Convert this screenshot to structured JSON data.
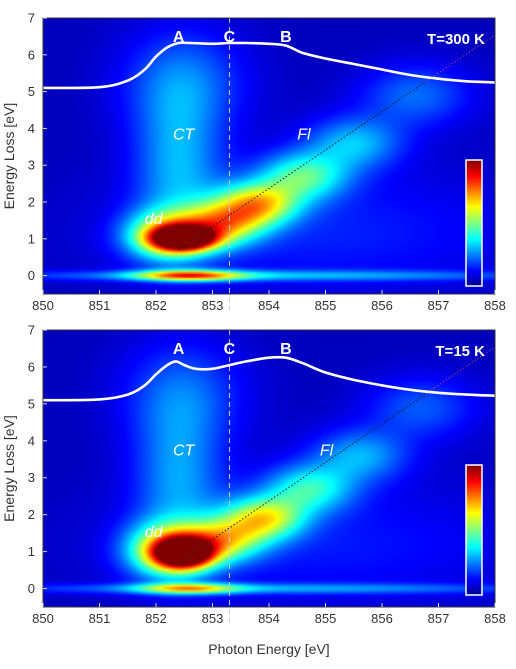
{
  "chart_data": [
    {
      "type": "heatmap",
      "panel": "top",
      "temperature_label": "T=300 K",
      "xlim": [
        850,
        858
      ],
      "ylim": [
        -0.5,
        7
      ],
      "x_ticks": [
        850,
        851,
        852,
        853,
        854,
        855,
        856,
        857,
        858
      ],
      "y_ticks": [
        0,
        1,
        2,
        3,
        4,
        5,
        6,
        7
      ],
      "ylabel": "Energy Loss [eV]",
      "xlabel": "",
      "grid": false,
      "colorbar": {
        "min_color": "#00008f",
        "max_color": "#800000",
        "placement": "right",
        "tick_labels": false
      },
      "xas_curve": {
        "x": [
          850,
          851,
          851.5,
          851.8,
          852.0,
          852.2,
          852.4,
          852.6,
          853.0,
          853.3,
          853.6,
          854.0,
          854.3,
          854.6,
          855.0,
          855.5,
          856.0,
          856.5,
          857.0,
          857.5,
          858
        ],
        "y": [
          5.1,
          5.12,
          5.3,
          5.6,
          5.95,
          6.2,
          6.32,
          6.32,
          6.3,
          6.32,
          6.32,
          6.3,
          6.25,
          6.05,
          5.9,
          5.75,
          5.6,
          5.45,
          5.35,
          5.28,
          5.25
        ]
      },
      "peak_labels": [
        {
          "text": "A",
          "x": 852.4
        },
        {
          "text": "C",
          "x": 853.3
        },
        {
          "text": "B",
          "x": 854.3
        }
      ],
      "vertical_marker_x": 853.3,
      "fluorescence_line": {
        "x": [
          852.4,
          858
        ],
        "y": [
          0.7,
          6.55
        ]
      },
      "features": [
        {
          "text": "CT",
          "x": 852.3,
          "y": 3.7
        },
        {
          "text": "Fl",
          "x": 854.5,
          "y": 3.7
        },
        {
          "text": "dd",
          "x": 851.8,
          "y": 1.4
        }
      ],
      "intensity_blobs": [
        {
          "x": 852.5,
          "y": 1.0,
          "sx": 0.38,
          "sy": 0.22,
          "level": 1.0
        },
        {
          "x": 852.2,
          "y": 1.1,
          "sx": 0.5,
          "sy": 0.45,
          "level": 0.55
        },
        {
          "x": 852.6,
          "y": 0.0,
          "sx": 0.65,
          "sy": 0.1,
          "level": 0.6
        },
        {
          "x": 854.0,
          "y": 0.0,
          "sx": 3.5,
          "sy": 0.1,
          "level": 0.22
        },
        {
          "x": 853.8,
          "y": 1.95,
          "sx": 0.5,
          "sy": 0.4,
          "level": 0.55
        },
        {
          "x": 853.2,
          "y": 1.4,
          "sx": 0.5,
          "sy": 0.4,
          "level": 0.5
        },
        {
          "x": 854.6,
          "y": 2.7,
          "sx": 0.55,
          "sy": 0.45,
          "level": 0.38
        },
        {
          "x": 855.5,
          "y": 3.6,
          "sx": 0.6,
          "sy": 0.5,
          "level": 0.26
        },
        {
          "x": 856.6,
          "y": 4.9,
          "sx": 0.7,
          "sy": 0.6,
          "level": 0.18
        },
        {
          "x": 852.4,
          "y": 3.0,
          "sx": 0.55,
          "sy": 1.6,
          "level": 0.24
        },
        {
          "x": 852.5,
          "y": 5.3,
          "sx": 0.8,
          "sy": 1.0,
          "level": 0.16
        },
        {
          "x": 855.0,
          "y": 1.2,
          "sx": 2.5,
          "sy": 1.2,
          "level": 0.1
        }
      ]
    },
    {
      "type": "heatmap",
      "panel": "bottom",
      "temperature_label": "T=15 K",
      "xlim": [
        850,
        858
      ],
      "ylim": [
        -0.5,
        7
      ],
      "x_ticks": [
        850,
        851,
        852,
        853,
        854,
        855,
        856,
        857,
        858
      ],
      "y_ticks": [
        0,
        1,
        2,
        3,
        4,
        5,
        6,
        7
      ],
      "ylabel": "Energy Loss [eV]",
      "xlabel": "Photon Energy [eV]",
      "grid": false,
      "colorbar": {
        "min_color": "#00008f",
        "max_color": "#800000",
        "placement": "right",
        "tick_labels": false
      },
      "xas_curve": {
        "x": [
          850,
          851,
          851.5,
          851.8,
          852.0,
          852.2,
          852.35,
          852.5,
          852.7,
          853.0,
          853.3,
          853.6,
          854.0,
          854.3,
          854.6,
          855.0,
          855.5,
          856.0,
          856.5,
          857.0,
          857.5,
          858
        ],
        "y": [
          5.1,
          5.12,
          5.25,
          5.5,
          5.8,
          6.05,
          6.15,
          6.05,
          5.95,
          5.95,
          6.05,
          6.15,
          6.25,
          6.25,
          6.1,
          5.85,
          5.65,
          5.5,
          5.38,
          5.3,
          5.25,
          5.22
        ]
      },
      "peak_labels": [
        {
          "text": "A",
          "x": 852.4
        },
        {
          "text": "C",
          "x": 853.3
        },
        {
          "text": "B",
          "x": 854.3
        }
      ],
      "vertical_marker_x": 853.3,
      "fluorescence_line": {
        "x": [
          852.4,
          858
        ],
        "y": [
          0.7,
          6.55
        ]
      },
      "features": [
        {
          "text": "CT",
          "x": 852.3,
          "y": 3.6
        },
        {
          "text": "Fl",
          "x": 854.9,
          "y": 3.6
        },
        {
          "text": "dd",
          "x": 851.8,
          "y": 1.4
        }
      ],
      "intensity_blobs": [
        {
          "x": 852.5,
          "y": 0.95,
          "sx": 0.35,
          "sy": 0.28,
          "level": 1.0
        },
        {
          "x": 852.2,
          "y": 1.05,
          "sx": 0.5,
          "sy": 0.5,
          "level": 0.55
        },
        {
          "x": 852.6,
          "y": 0.0,
          "sx": 0.6,
          "sy": 0.1,
          "level": 0.45
        },
        {
          "x": 854.0,
          "y": 0.0,
          "sx": 3.5,
          "sy": 0.1,
          "level": 0.2
        },
        {
          "x": 853.9,
          "y": 1.9,
          "sx": 0.5,
          "sy": 0.4,
          "level": 0.52
        },
        {
          "x": 853.2,
          "y": 1.3,
          "sx": 0.5,
          "sy": 0.4,
          "level": 0.46
        },
        {
          "x": 854.7,
          "y": 2.7,
          "sx": 0.55,
          "sy": 0.45,
          "level": 0.34
        },
        {
          "x": 855.6,
          "y": 3.6,
          "sx": 0.6,
          "sy": 0.5,
          "level": 0.24
        },
        {
          "x": 856.7,
          "y": 4.9,
          "sx": 0.7,
          "sy": 0.6,
          "level": 0.16
        },
        {
          "x": 852.4,
          "y": 3.0,
          "sx": 0.55,
          "sy": 1.6,
          "level": 0.22
        },
        {
          "x": 852.5,
          "y": 5.3,
          "sx": 0.8,
          "sy": 1.0,
          "level": 0.14
        },
        {
          "x": 855.0,
          "y": 1.2,
          "sx": 2.5,
          "sy": 1.2,
          "level": 0.09
        }
      ]
    }
  ]
}
